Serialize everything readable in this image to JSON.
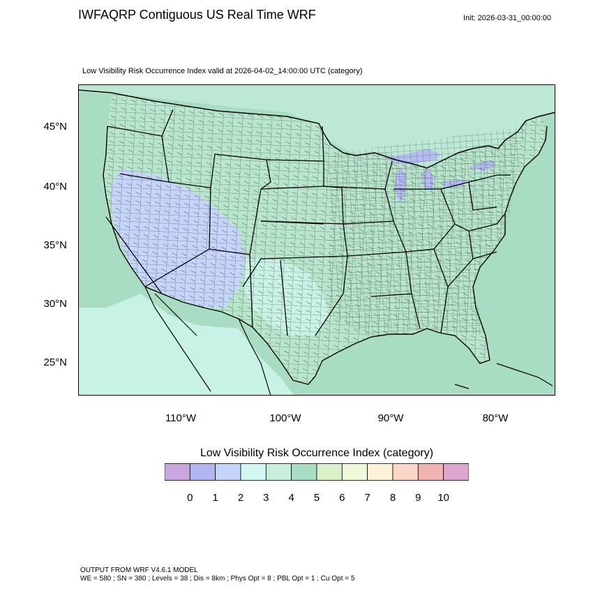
{
  "header": {
    "title": "IWFAQRP Contiguous US Real Time WRF",
    "init": "Init: 2026-03-31_00:00:00",
    "subtitle": "Low Visibility Risk Occurrence Index valid at 2026-04-02_14:00:00 UTC   (category)"
  },
  "map": {
    "lat_labels": [
      "45°N",
      "40°N",
      "35°N",
      "30°N",
      "25°N"
    ],
    "lon_labels": [
      "110°W",
      "100°W",
      "90°W",
      "80°W"
    ],
    "colors": {
      "ocean": "#a8dcc3",
      "land_main": "#b7e6cc",
      "land_west": "#c9f2e7",
      "low_risk": "#c5d4f9",
      "very_low": "#b4bdf0",
      "moderate": "#d9efcb",
      "elevated": "#f7dcc0",
      "canada": "#bde8d4",
      "borders": "#000000",
      "counties": "#2a2a2a"
    }
  },
  "colorbar": {
    "title": "Low Visibility Risk Occurrence Index  (category)",
    "colors": [
      "#c8a6de",
      "#b2b6f0",
      "#c5d4fb",
      "#d4f6f2",
      "#c6eedb",
      "#a8dcc3",
      "#daf0c8",
      "#eff8d8",
      "#fdf2d6",
      "#fbd5c6",
      "#efb4b2",
      "#dca6cf"
    ],
    "labels": [
      "0",
      "1",
      "2",
      "3",
      "4",
      "5",
      "6",
      "7",
      "8",
      "9",
      "10"
    ]
  },
  "footer": {
    "line1": "OUTPUT FROM WRF V4.6.1 MODEL",
    "line2": "WE = 580 ; SN = 380 ; Levels = 38 ; Dis = 8km ; Phys Opt = 8 ; PBL Opt = 1 ; Cu Opt = 5"
  }
}
